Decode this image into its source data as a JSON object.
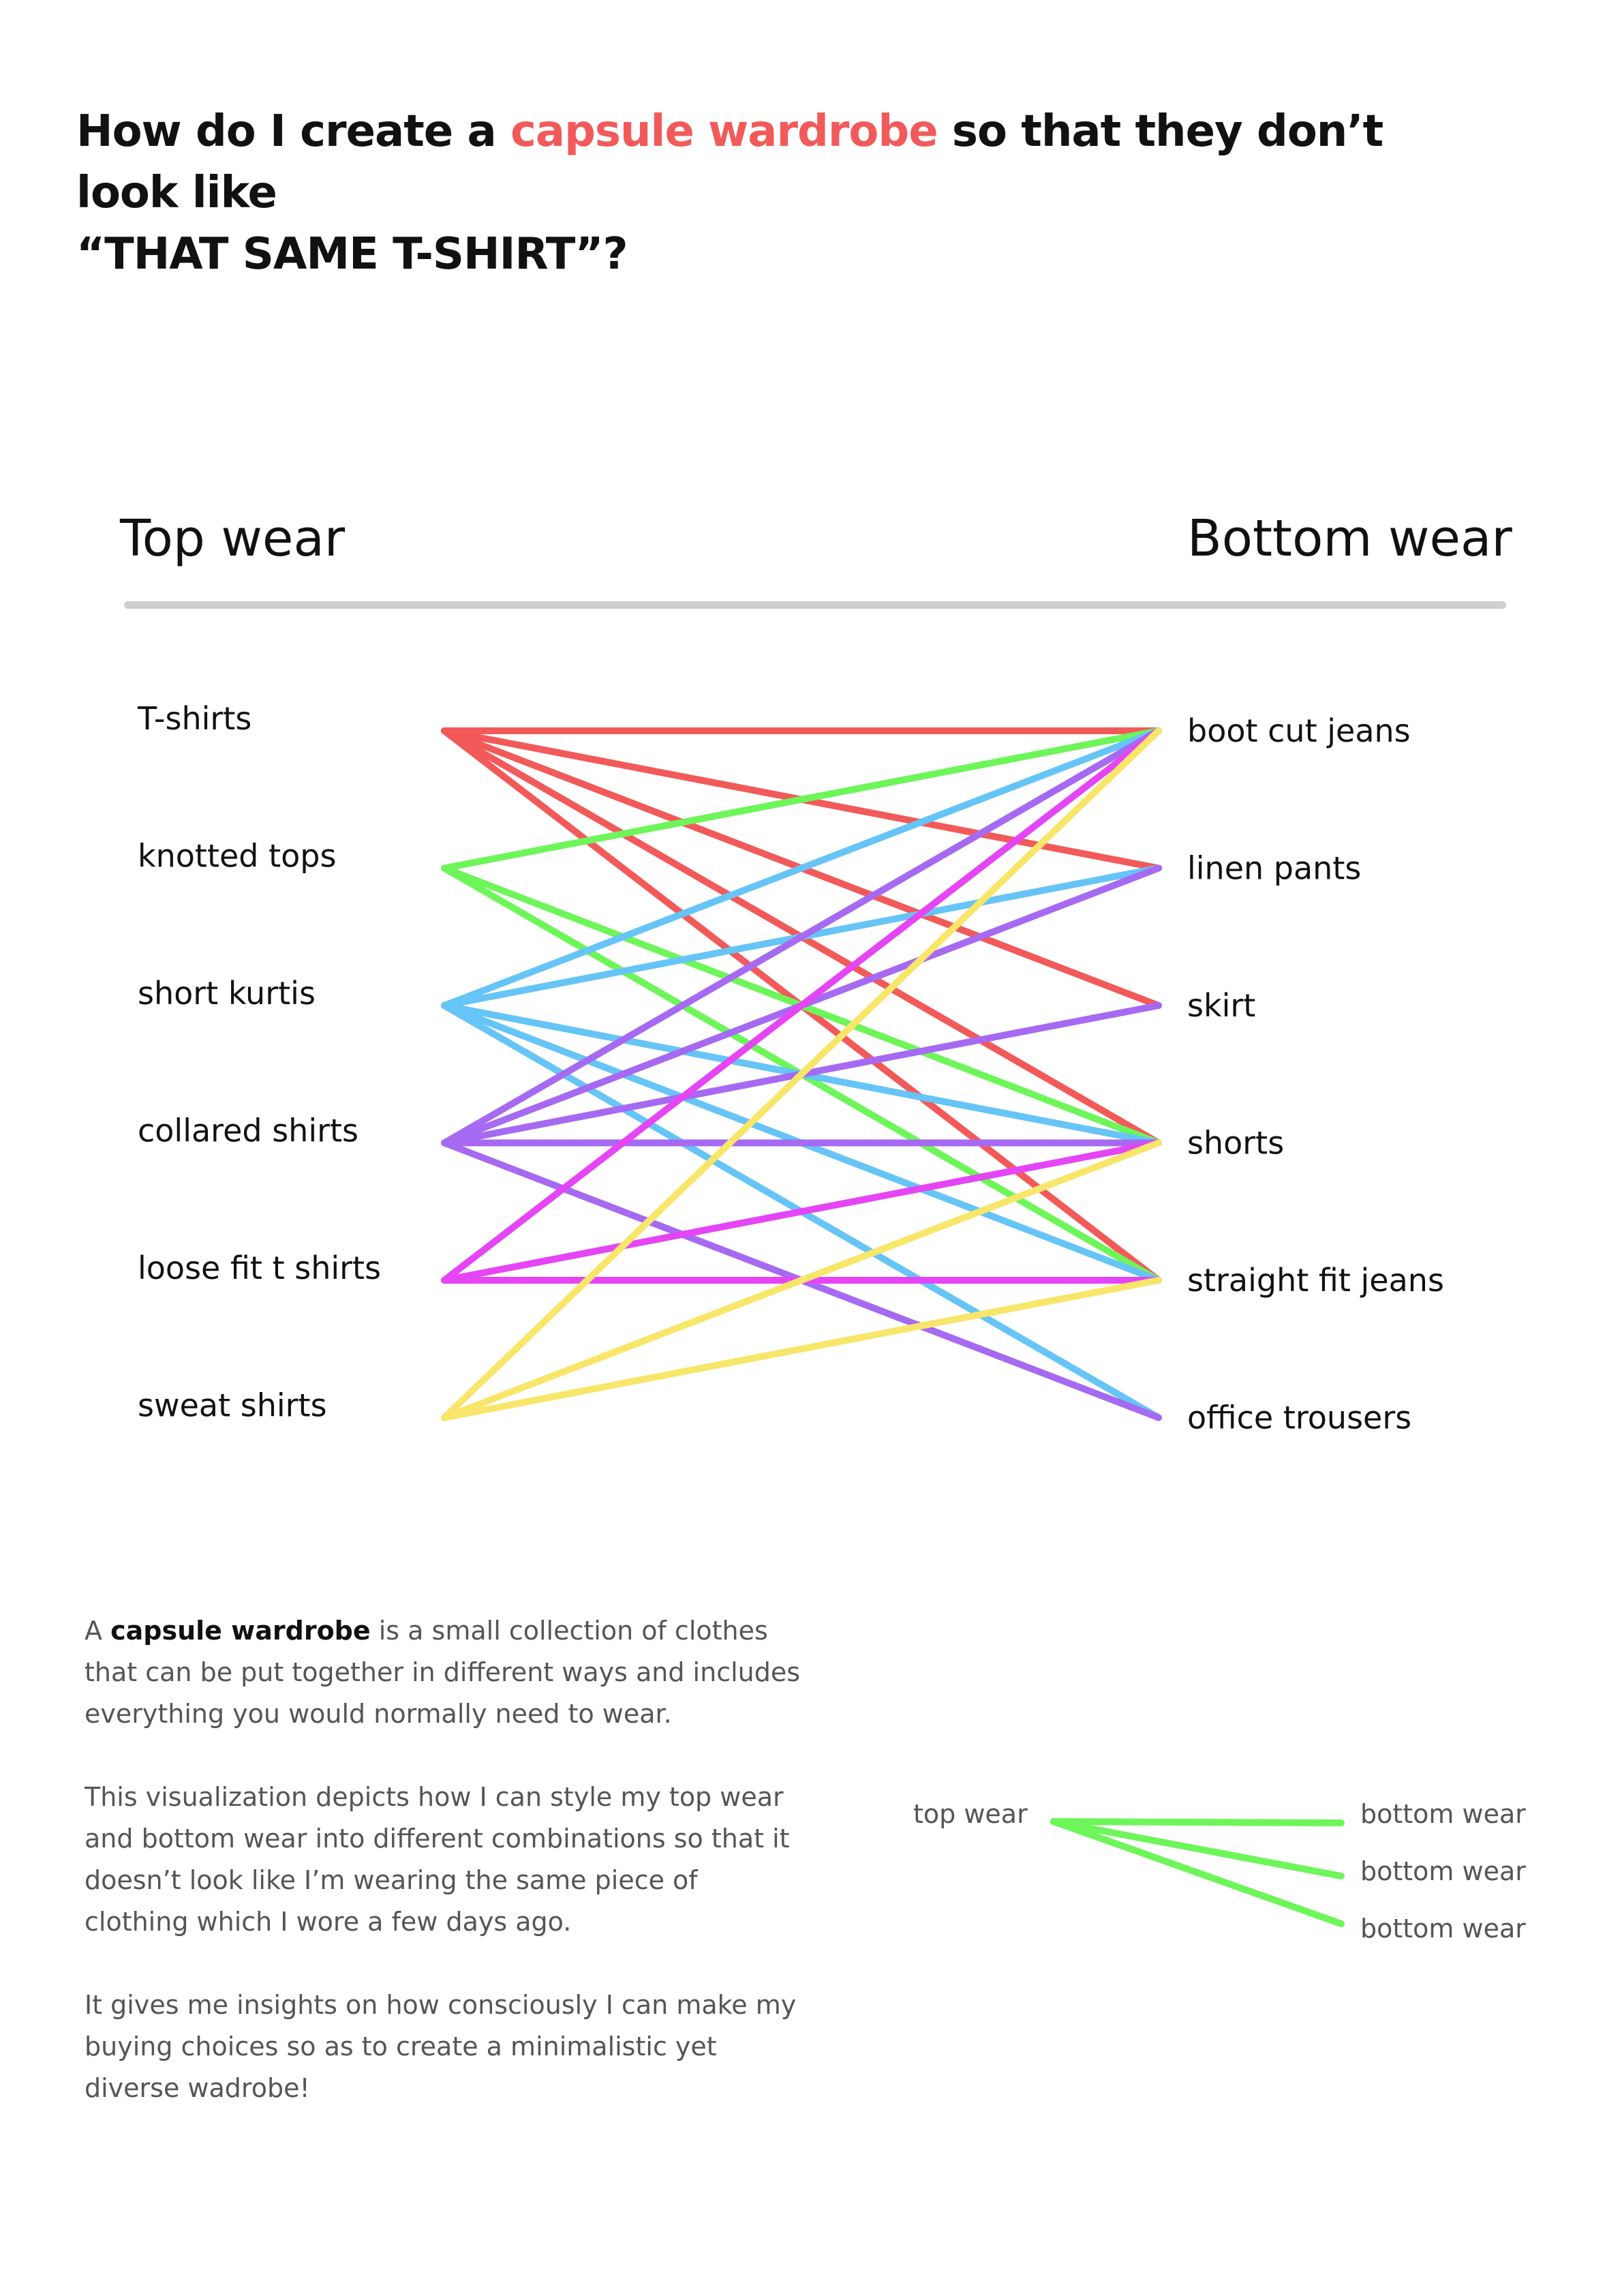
{
  "title": {
    "part1": "How do I create a ",
    "accent": "capsule wardrobe",
    "part2": " so that they don’t",
    "line2": "look like",
    "line3": "“THAT SAME T-SHIRT”?",
    "accent_color": "#f25a5a"
  },
  "headers": {
    "left": "Top wear",
    "right": "Bottom wear"
  },
  "chart_data": {
    "type": "bipartite",
    "left_label": "Top wear",
    "right_label": "Bottom wear",
    "left_nodes": [
      "T-shirts",
      "knotted tops",
      "short kurtis",
      "collared shirts",
      "loose fit t shirts",
      "sweat shirts"
    ],
    "right_nodes": [
      "boot cut jeans",
      "linen pants",
      "skirt",
      "shorts",
      "straight fit jeans",
      "office trousers"
    ],
    "links": [
      {
        "from": "T-shirts",
        "to": "boot cut jeans",
        "color": "#f25a5a"
      },
      {
        "from": "T-shirts",
        "to": "linen pants",
        "color": "#f25a5a"
      },
      {
        "from": "T-shirts",
        "to": "skirt",
        "color": "#f25a5a"
      },
      {
        "from": "T-shirts",
        "to": "shorts",
        "color": "#f25a5a"
      },
      {
        "from": "T-shirts",
        "to": "straight fit jeans",
        "color": "#f25a5a"
      },
      {
        "from": "knotted tops",
        "to": "boot cut jeans",
        "color": "#6ef55a"
      },
      {
        "from": "knotted tops",
        "to": "shorts",
        "color": "#6ef55a"
      },
      {
        "from": "knotted tops",
        "to": "straight fit jeans",
        "color": "#6ef55a"
      },
      {
        "from": "short kurtis",
        "to": "boot cut jeans",
        "color": "#66c4f7"
      },
      {
        "from": "short kurtis",
        "to": "linen pants",
        "color": "#66c4f7"
      },
      {
        "from": "short kurtis",
        "to": "shorts",
        "color": "#66c4f7"
      },
      {
        "from": "short kurtis",
        "to": "straight fit jeans",
        "color": "#66c4f7"
      },
      {
        "from": "short kurtis",
        "to": "office trousers",
        "color": "#66c4f7"
      },
      {
        "from": "collared shirts",
        "to": "boot cut jeans",
        "color": "#a66af2"
      },
      {
        "from": "collared shirts",
        "to": "linen pants",
        "color": "#a66af2"
      },
      {
        "from": "collared shirts",
        "to": "skirt",
        "color": "#a66af2"
      },
      {
        "from": "collared shirts",
        "to": "shorts",
        "color": "#a66af2"
      },
      {
        "from": "collared shirts",
        "to": "office trousers",
        "color": "#a66af2"
      },
      {
        "from": "loose fit t shirts",
        "to": "boot cut jeans",
        "color": "#e545f5"
      },
      {
        "from": "loose fit t shirts",
        "to": "shorts",
        "color": "#e545f5"
      },
      {
        "from": "loose fit t shirts",
        "to": "straight fit jeans",
        "color": "#e545f5"
      },
      {
        "from": "sweat shirts",
        "to": "boot cut jeans",
        "color": "#f7e66a"
      },
      {
        "from": "sweat shirts",
        "to": "shorts",
        "color": "#f7e66a"
      },
      {
        "from": "sweat shirts",
        "to": "straight fit jeans",
        "color": "#f7e66a"
      }
    ]
  },
  "description": {
    "p1_pre": "A ",
    "p1_bold": "capsule wardrobe",
    "p1_post": " is a small collection of clothes that can be put together in different ways and includes everything you would normally need to wear.",
    "p2": "This visualization depicts how I can style my top wear and bottom wear into different combinations so that it doesn’t look like I’m wearing the same piece of clothing which I wore a few days ago.",
    "p3": "It gives me insights on how consciously I can make my buying choices so as to create a minimalistic yet diverse wadrobe!"
  },
  "legend": {
    "source": "top wear",
    "targets": [
      "bottom wear",
      "bottom wear",
      "bottom wear"
    ],
    "color": "#6ef55a"
  }
}
